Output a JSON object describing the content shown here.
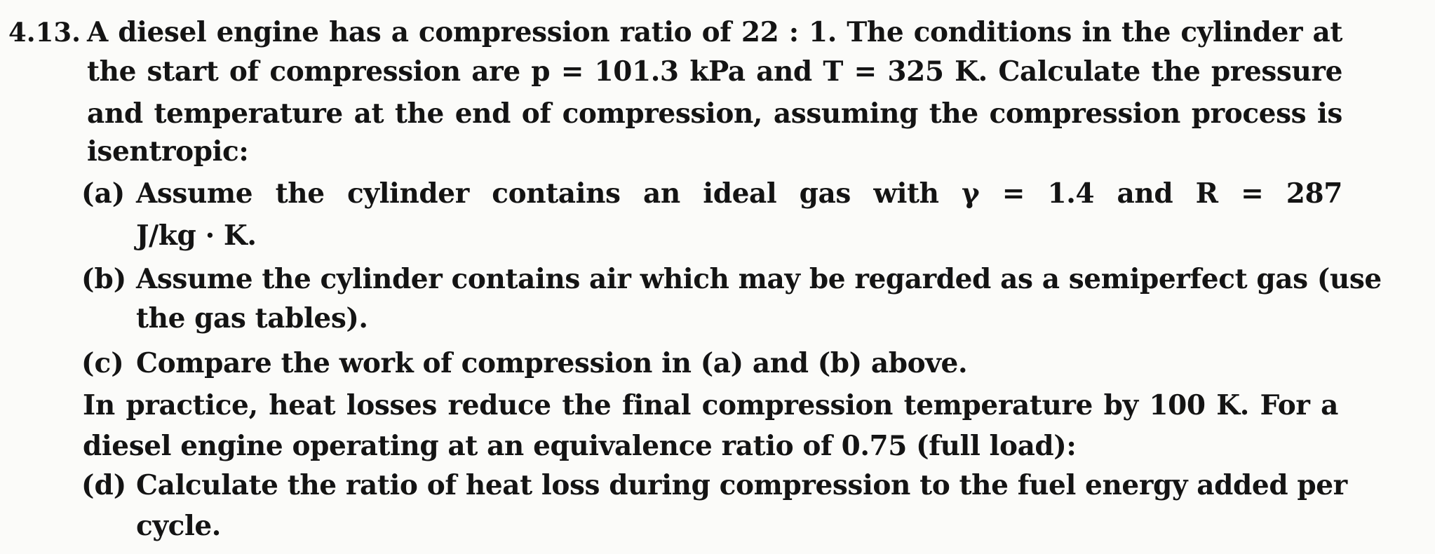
{
  "problem": {
    "number": "4.13.",
    "intro_lines": [
      "A diesel engine has a compression ratio of 22 : 1. The conditions in the cylinder at",
      "the start of compression are p = 101.3 kPa and T = 325 K. Calculate the pressure",
      "and temperature at the end of compression, assuming the compression process is",
      "isentropic:"
    ],
    "parts": [
      {
        "label": "(a)",
        "lines": [
          "Assume the cylinder contains an ideal gas with γ = 1.4 and R = 287",
          "J/kg · K."
        ]
      },
      {
        "label": "(b)",
        "lines": [
          "Assume the cylinder contains air which may be regarded as a semiperfect gas (use",
          "the gas tables)."
        ]
      },
      {
        "label": "(c)",
        "lines": [
          "Compare the work of compression in (a) and (b) above."
        ]
      }
    ],
    "practice_lines": [
      "In practice, heat losses reduce the final compression temperature by 100 K. For a",
      "diesel engine operating at an equivalence ratio of 0.75 (full load):"
    ],
    "part_d": {
      "label": "(d)",
      "lines": [
        "Calculate the ratio of heat loss during compression to the fuel energy added per",
        "cycle."
      ]
    }
  }
}
